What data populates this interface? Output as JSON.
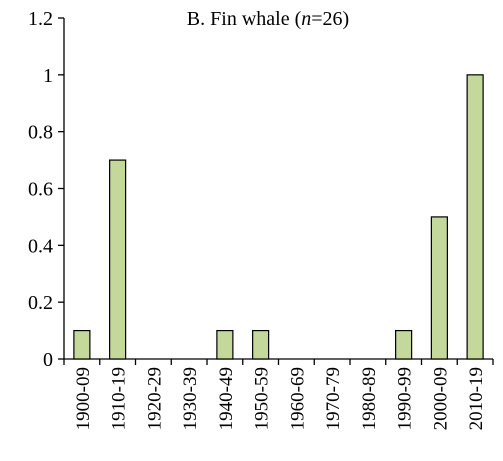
{
  "chart_data": {
    "type": "bar",
    "title": {
      "prefix": "B. Fin whale (",
      "italic": "n",
      "suffix": "=26)"
    },
    "xlabel": "",
    "ylabel": "",
    "ylim": [
      0,
      1.2
    ],
    "yticks": [
      "0",
      "0.2",
      "0.4",
      "0.6",
      "0.8",
      "1",
      "1.2"
    ],
    "grid": false,
    "categories": [
      "1900-09",
      "1910-19",
      "1920-29",
      "1930-39",
      "1940-49",
      "1950-59",
      "1960-69",
      "1970-79",
      "1980-89",
      "1990-99",
      "2000-09",
      "2010-19"
    ],
    "values": [
      0.1,
      0.7,
      0,
      0,
      0.1,
      0.1,
      0,
      0,
      0,
      0.1,
      0.5,
      1.0
    ],
    "colors": {
      "bar_fill": "#c4d89b",
      "bar_stroke": "#000000",
      "axis": "#000000"
    }
  }
}
